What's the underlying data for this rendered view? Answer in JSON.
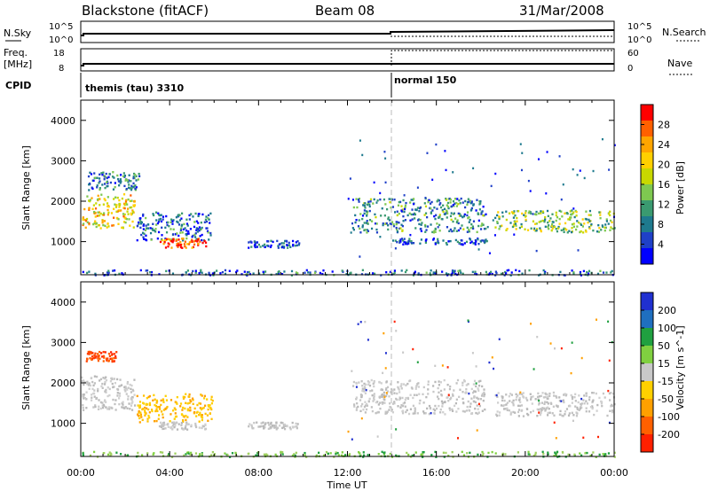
{
  "header": {
    "station": "Blackstone (fitACF)",
    "beam": "Beam 08",
    "date": "31/Mar/2008"
  },
  "summary": {
    "nsky_label": "N.Sky",
    "nsearch_label": "N.Search",
    "nsky_ticks": [
      "10^5",
      "10^0"
    ],
    "nsearch_ticks": [
      "10^5",
      "10^0"
    ],
    "freq_label_1": "Freq.",
    "freq_label_2": "[MHz]",
    "freq_ticks": [
      "18",
      "8"
    ],
    "nave_label": "Nave",
    "nave_ticks": [
      "60",
      "0"
    ],
    "cpid_label": "CPID",
    "cpid_segments": [
      {
        "text": "themis (tau) 3310",
        "start_h": 0,
        "end_h": 14
      },
      {
        "text": "normal 150",
        "start_h": 14,
        "end_h": 24
      }
    ]
  },
  "chart_data": [
    {
      "type": "heatmap",
      "title": "",
      "xlabel": "Time UT",
      "ylabel": "Slant Range [km]",
      "xlim": [
        0,
        24
      ],
      "ylim": [
        180,
        4500
      ],
      "x_ticks": [
        0,
        4,
        8,
        12,
        16,
        20,
        24
      ],
      "x_tick_labels": [
        "00:00",
        "04:00",
        "08:00",
        "12:00",
        "16:00",
        "20:00",
        "00:00"
      ],
      "y_ticks": [
        1000,
        2000,
        3000,
        4000
      ],
      "y_tick_labels": [
        "1000",
        "2000",
        "3000",
        "4000"
      ],
      "colorbar": {
        "label": "Power [dB]",
        "ticks": [
          "28",
          "24",
          "20",
          "16",
          "12",
          "8",
          "4"
        ],
        "colors": [
          "#ff0000",
          "#ff6000",
          "#ffa500",
          "#ffd000",
          "#c8d800",
          "#7ec850",
          "#3a9a70",
          "#1e7a8e",
          "#1f40c8",
          "#0000ff"
        ]
      },
      "regions": [
        {
          "t0": 0.05,
          "t1": 2.4,
          "r0": 1350,
          "r1": 2200,
          "level": 0.62
        },
        {
          "t0": 0.3,
          "t1": 2.6,
          "r0": 2300,
          "r1": 2750,
          "level": 0.25
        },
        {
          "t0": 2.5,
          "t1": 5.9,
          "r0": 1050,
          "r1": 1750,
          "level": 0.22
        },
        {
          "t0": 3.5,
          "t1": 5.6,
          "r0": 870,
          "r1": 1100,
          "level": 0.85
        },
        {
          "t0": 7.5,
          "t1": 9.8,
          "r0": 870,
          "r1": 1050,
          "level": 0.18
        },
        {
          "t0": 12.2,
          "t1": 18.2,
          "r0": 1250,
          "r1": 2100,
          "level": 0.3
        },
        {
          "t0": 18.6,
          "t1": 24.0,
          "r0": 1250,
          "r1": 1800,
          "level": 0.45
        },
        {
          "t0": 14.0,
          "t1": 18.3,
          "r0": 950,
          "r1": 1100,
          "level": 0.15
        },
        {
          "t0": 0.0,
          "t1": 24.0,
          "r0": 190,
          "r1": 320,
          "level": 0.2
        }
      ]
    },
    {
      "type": "heatmap",
      "title": "",
      "xlabel": "Time UT",
      "ylabel": "Slant Range [km]",
      "xlim": [
        0,
        24
      ],
      "ylim": [
        180,
        4500
      ],
      "x_ticks": [
        0,
        4,
        8,
        12,
        16,
        20,
        24
      ],
      "x_tick_labels": [
        "00:00",
        "04:00",
        "08:00",
        "12:00",
        "16:00",
        "20:00",
        "00:00"
      ],
      "y_ticks": [
        1000,
        2000,
        3000,
        4000
      ],
      "y_tick_labels": [
        "1000",
        "2000",
        "3000",
        "4000"
      ],
      "colorbar": {
        "label": "Velocity [m s^-1]",
        "ticks": [
          "200",
          "100",
          "50",
          "15",
          "-15",
          "-50",
          "-100",
          "-200"
        ],
        "colors": [
          "#2030d0",
          "#1f6fbf",
          "#20a040",
          "#80d040",
          "#c8c8c8",
          "#ffd000",
          "#ffa000",
          "#ff6000",
          "#ff2000"
        ]
      },
      "regions": [
        {
          "t0": 0.0,
          "t1": 2.4,
          "r0": 1350,
          "r1": 2200,
          "vel": "gray"
        },
        {
          "t0": 0.2,
          "t1": 1.6,
          "r0": 2550,
          "r1": 2800,
          "vel": "red"
        },
        {
          "t0": 2.5,
          "t1": 5.9,
          "r0": 1050,
          "r1": 1750,
          "vel": "yellow"
        },
        {
          "t0": 3.5,
          "t1": 5.6,
          "r0": 870,
          "r1": 1050,
          "vel": "gray"
        },
        {
          "t0": 7.5,
          "t1": 9.8,
          "r0": 870,
          "r1": 1050,
          "vel": "gray"
        },
        {
          "t0": 12.2,
          "t1": 18.2,
          "r0": 1250,
          "r1": 2100,
          "vel": "gray"
        },
        {
          "t0": 18.6,
          "t1": 24.0,
          "r0": 1200,
          "r1": 1800,
          "vel": "gray"
        },
        {
          "t0": 0.0,
          "t1": 24.0,
          "r0": 190,
          "r1": 320,
          "vel": "green"
        }
      ]
    }
  ]
}
